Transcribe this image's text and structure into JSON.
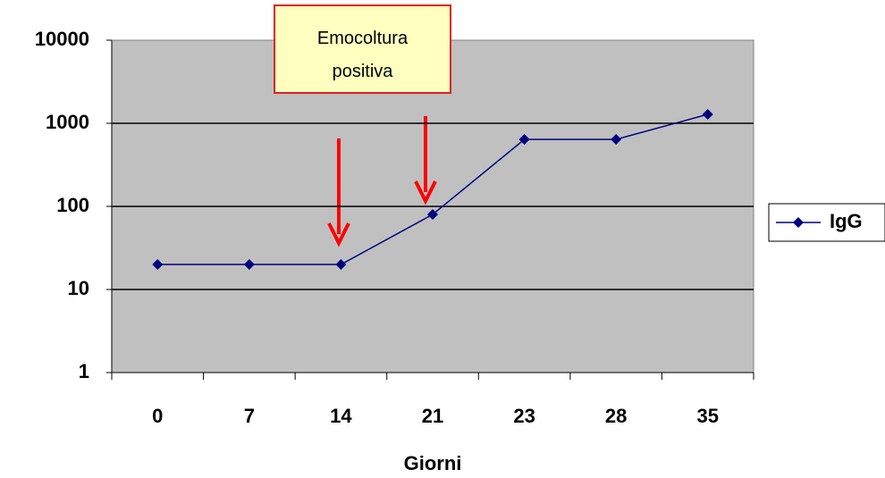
{
  "chart_data": {
    "type": "line",
    "annotation": "Emocoltura positiva",
    "x_label": "Giorni",
    "categories": [
      "0",
      "7",
      "14",
      "21",
      "23",
      "28",
      "35"
    ],
    "series": [
      {
        "name": "IgG",
        "color": "#000080",
        "values": [
          20,
          20,
          20,
          80,
          640,
          640,
          1280
        ]
      }
    ],
    "yscale": "log",
    "ylim": [
      1,
      10000
    ],
    "yticks": [
      1,
      10,
      100,
      1000,
      10000
    ],
    "grid": true,
    "legend": "right",
    "background": "#c0c0c0"
  }
}
